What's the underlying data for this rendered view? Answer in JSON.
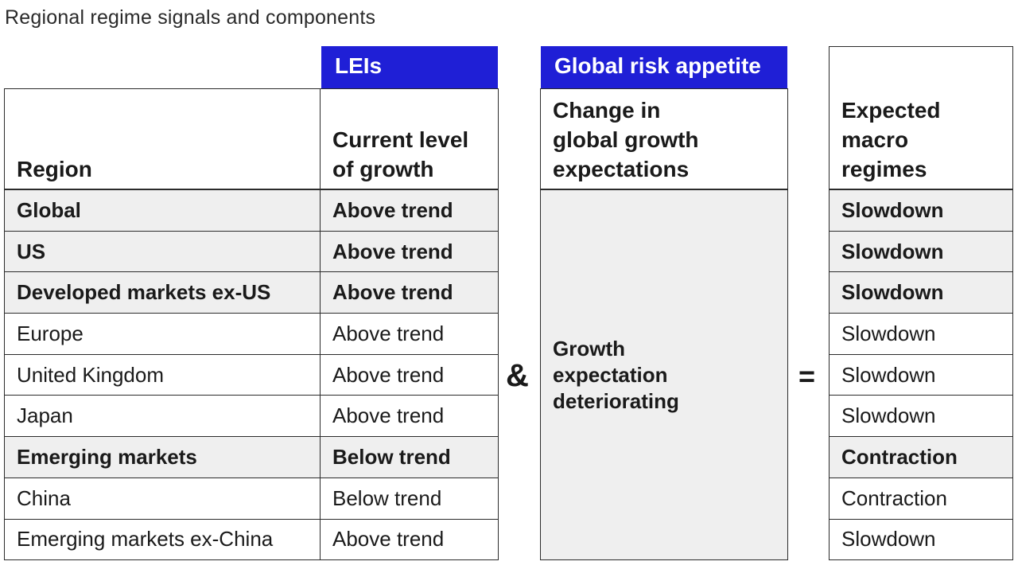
{
  "title": "Regional regime signals and components",
  "badges": {
    "leis": "LEIs",
    "global_risk": "Global risk appetite"
  },
  "headers": {
    "region": "Region",
    "growth_line1": "Current level",
    "growth_line2": "of growth",
    "change_line1": "Change in",
    "change_line2": "global growth",
    "change_line3": "expectations",
    "regime_line1": "Expected",
    "regime_line2": "macro",
    "regime_line3": "regimes"
  },
  "risk_body": {
    "line1": "Growth",
    "line2": "expectation",
    "line3": "deteriorating"
  },
  "operators": {
    "and": "&",
    "equals": "="
  },
  "rows": [
    {
      "region": "Global",
      "growth": "Above trend",
      "regime": "Slowdown",
      "bold": true
    },
    {
      "region": "US",
      "growth": "Above trend",
      "regime": "Slowdown",
      "bold": true
    },
    {
      "region": "Developed markets ex-US",
      "growth": "Above trend",
      "regime": "Slowdown",
      "bold": true
    },
    {
      "region": "Europe",
      "growth": "Above trend",
      "regime": "Slowdown",
      "bold": false
    },
    {
      "region": "United Kingdom",
      "growth": "Above trend",
      "regime": "Slowdown",
      "bold": false
    },
    {
      "region": "Japan",
      "growth": "Above trend",
      "regime": "Slowdown",
      "bold": false
    },
    {
      "region": "Emerging markets",
      "growth": "Below trend",
      "regime": "Contraction",
      "bold": true
    },
    {
      "region": "China",
      "growth": "Below trend",
      "regime": "Contraction",
      "bold": false
    },
    {
      "region": "Emerging markets ex-China",
      "growth": "Above trend",
      "regime": "Slowdown",
      "bold": false
    }
  ],
  "colors": {
    "accent_blue": "#1f1fd6",
    "shaded_row": "#efefef",
    "border": "#2b2b2b"
  }
}
